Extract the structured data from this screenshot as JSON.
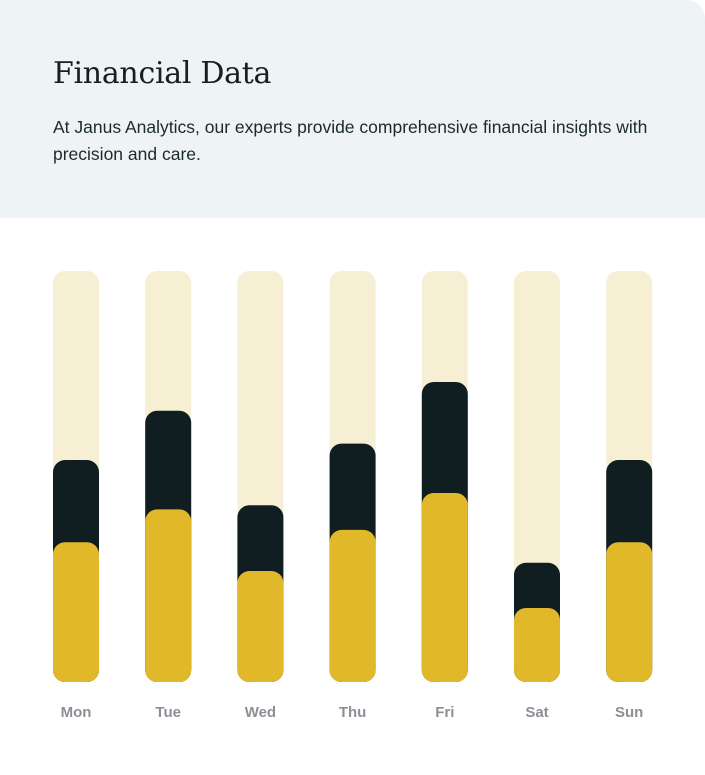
{
  "header": {
    "title": "Financial Data",
    "description": "At Janus Analytics, our experts provide comprehensive financial insights with precision and care."
  },
  "colors": {
    "header_background": "#eef3f5",
    "track": "#f7efd3",
    "dark_segment": "#101e21",
    "gold_segment": "#e1b829",
    "label": "#8c8f96"
  },
  "chart_data": {
    "type": "bar",
    "stacked": true,
    "categories": [
      "Mon",
      "Tue",
      "Wed",
      "Thu",
      "Fri",
      "Sat",
      "Sun"
    ],
    "series": [
      {
        "values": [
          34,
          42,
          27,
          37,
          46,
          18,
          34
        ],
        "color": "#e1b829"
      },
      {
        "values": [
          20,
          24,
          16,
          21,
          27,
          11,
          20
        ],
        "color": "#101e21"
      }
    ],
    "max": 100,
    "title": "",
    "xlabel": "",
    "ylabel": "",
    "grid": false
  }
}
